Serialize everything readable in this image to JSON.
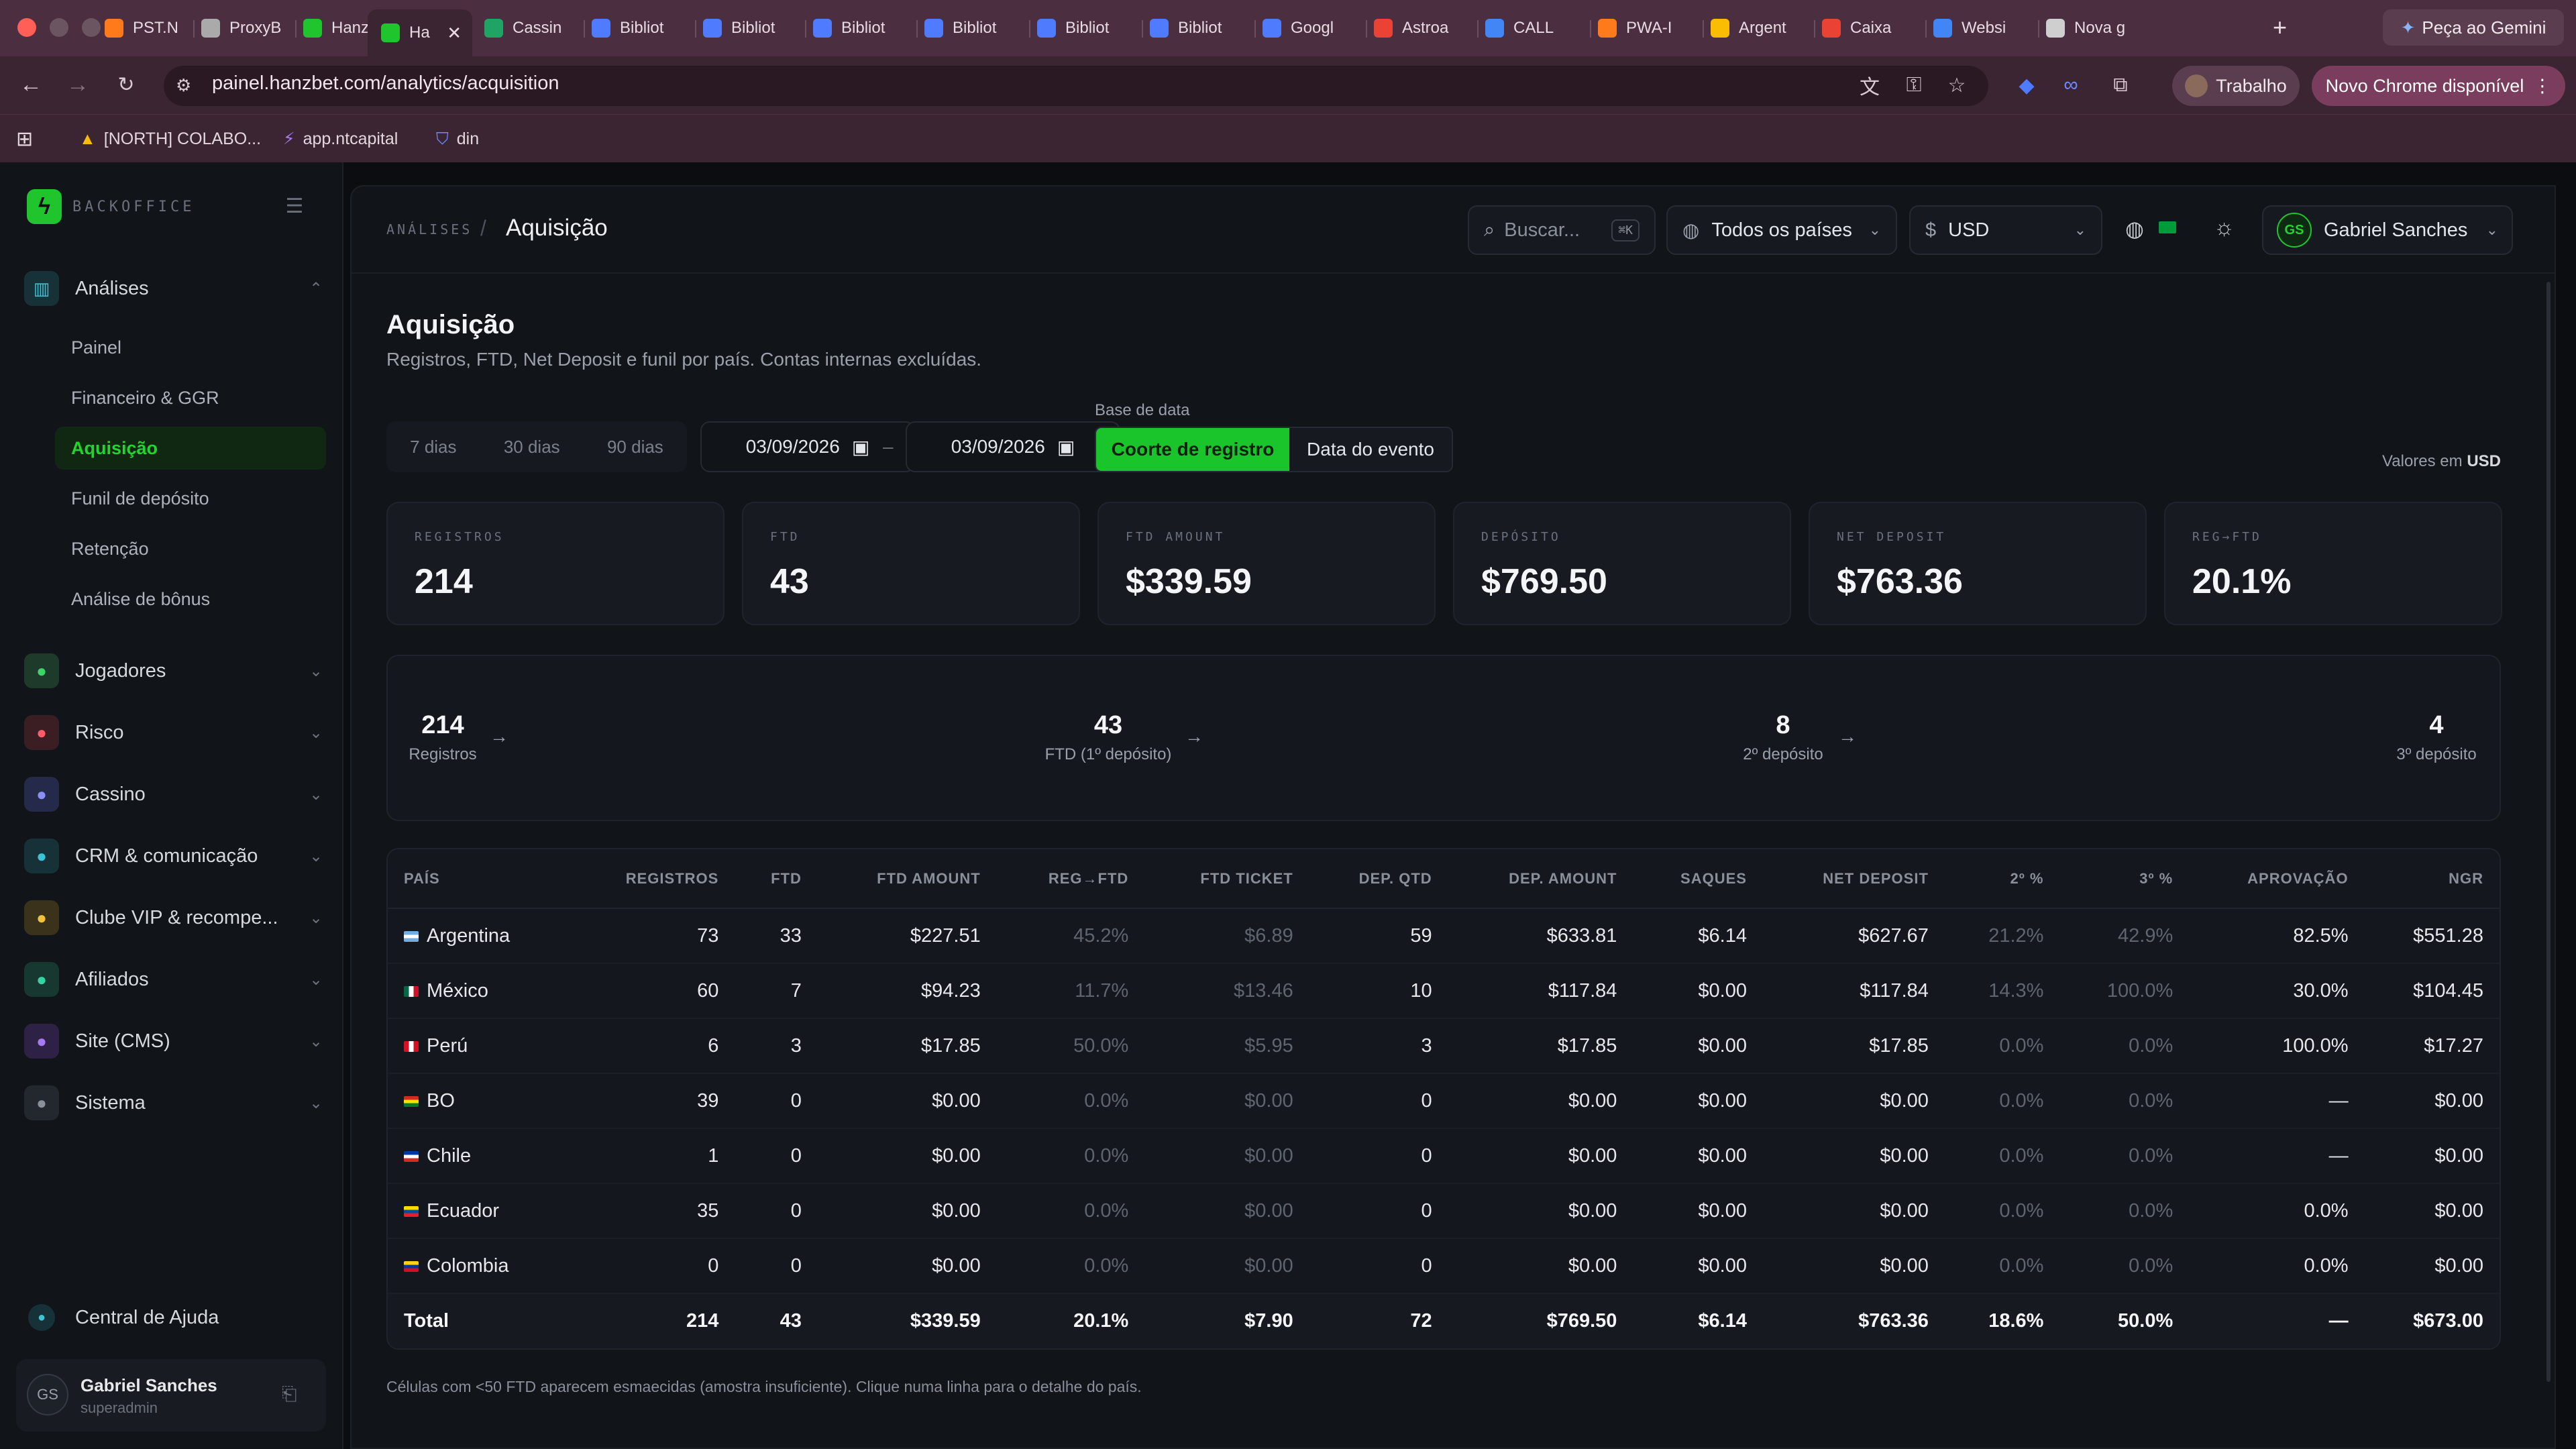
{
  "browser": {
    "tabs": [
      {
        "label": "PST.N",
        "color": "#ff7a1a"
      },
      {
        "label": "ProxyB",
        "color": "#aaaaaa"
      },
      {
        "label": "HanzB",
        "color": "#20c52e"
      },
      {
        "label": "Ha",
        "color": "#20c52e",
        "active": true
      },
      {
        "label": "Cassin",
        "color": "#1fa463"
      },
      {
        "label": "Bibliot",
        "color": "#4e7bff"
      },
      {
        "label": "Bibliot",
        "color": "#4e7bff"
      },
      {
        "label": "Bibliot",
        "color": "#4e7bff"
      },
      {
        "label": "Bibliot",
        "color": "#4e7bff"
      },
      {
        "label": "Bibliot",
        "color": "#4e7bff"
      },
      {
        "label": "Bibliot",
        "color": "#4e7bff"
      },
      {
        "label": "Googl",
        "color": "#4e7bff"
      },
      {
        "label": "Astroa",
        "color": "#ea4335"
      },
      {
        "label": "CALL",
        "color": "#4285f4"
      },
      {
        "label": "PWA-I",
        "color": "#ff7a1a"
      },
      {
        "label": "Argent",
        "color": "#fbbc04"
      },
      {
        "label": "Caixa",
        "color": "#ea4335"
      },
      {
        "label": "Websi",
        "color": "#4285f4"
      },
      {
        "label": "Nova g",
        "color": "#cfcfcf"
      }
    ],
    "new_tab": "+",
    "gemini": "Peça ao Gemini",
    "url": "painel.hanzbet.com/analytics/acquisition",
    "profile": "Trabalho",
    "new_chrome": "Novo Chrome disponível",
    "bookmarks": [
      "[NORTH] COLABO...",
      "app.ntcapital",
      "din"
    ]
  },
  "sidebar": {
    "brand": "BACKOFFICE",
    "analises": {
      "label": "Análises",
      "items": [
        "Painel",
        "Financeiro & GGR",
        "Aquisição",
        "Funil de depósito",
        "Retenção",
        "Análise de bônus"
      ],
      "active": "Aquisição"
    },
    "sections": [
      {
        "label": "Jogadores",
        "icon": "users-icon",
        "color": "#1e3a2a",
        "fg": "#3fd46a"
      },
      {
        "label": "Risco",
        "icon": "shield-icon",
        "color": "#3a1e24",
        "fg": "#ff5b6b"
      },
      {
        "label": "Cassino",
        "icon": "gamepad-icon",
        "color": "#262a4a",
        "fg": "#8b8ff5"
      },
      {
        "label": "CRM & comunicação",
        "icon": "chat-icon",
        "color": "#163238",
        "fg": "#3bc4d6"
      },
      {
        "label": "Clube VIP & recompe...",
        "icon": "trophy-icon",
        "color": "#3a321a",
        "fg": "#f2c23a"
      },
      {
        "label": "Afiliados",
        "icon": "affiliates-icon",
        "color": "#163830",
        "fg": "#34d3a3"
      },
      {
        "label": "Site (CMS)",
        "icon": "cms-icon",
        "color": "#2e2146",
        "fg": "#a47bf0"
      },
      {
        "label": "Sistema",
        "icon": "gear-icon",
        "color": "#23272e",
        "fg": "#8a909a"
      }
    ],
    "help": "Central de Ajuda",
    "user": {
      "initials": "GS",
      "name": "Gabriel Sanches",
      "role": "superadmin"
    }
  },
  "header": {
    "crumb_parent": "ANÁLISES",
    "crumb_sep": "/",
    "crumb_current": "Aquisição",
    "search_placeholder": "Buscar...",
    "search_kbd": "⌘K",
    "country": "Todos os países",
    "currency_symbol": "$",
    "currency": "USD",
    "user_initials": "GS",
    "user_name": "Gabriel Sanches"
  },
  "page": {
    "title": "Aquisição",
    "subtitle": "Registros, FTD, Net Deposit e funil por país. Contas internas excluídas.",
    "ranges": [
      "7 dias",
      "30 dias",
      "90 dias"
    ],
    "date_from": "03/09/2026",
    "date_to": "03/09/2026",
    "date_sep": "–",
    "base_label": "Base de data",
    "base_on": "Coorte de registro",
    "base_off": "Data do evento",
    "values_in_prefix": "Valores em",
    "values_in_cur": "USD"
  },
  "kpis": [
    {
      "k": "REGISTROS",
      "v": "214"
    },
    {
      "k": "FTD",
      "v": "43"
    },
    {
      "k": "FTD AMOUNT",
      "v": "$339.59"
    },
    {
      "k": "DEPÓSITO",
      "v": "$769.50"
    },
    {
      "k": "NET DEPOSIT",
      "v": "$763.36"
    },
    {
      "k": "REG→FTD",
      "v": "20.1%"
    }
  ],
  "funnel": [
    {
      "n": "214",
      "l": "Registros"
    },
    {
      "n": "43",
      "l": "FTD (1º depósito)"
    },
    {
      "n": "8",
      "l": "2º depósito"
    },
    {
      "n": "4",
      "l": "3º depósito"
    }
  ],
  "table": {
    "headers": [
      "PAÍS",
      "REGISTROS",
      "FTD",
      "FTD AMOUNT",
      "REG→FTD",
      "FTD TICKET",
      "DEP. QTD",
      "DEP. AMOUNT",
      "SAQUES",
      "NET DEPOSIT",
      "2º %",
      "3º %",
      "APROVAÇÃO",
      "NGR"
    ],
    "rows": [
      {
        "flag": [
          "#74acdf",
          "#ffffff",
          "#74acdf"
        ],
        "cells": [
          "Argentina",
          "73",
          "33",
          "$227.51",
          "45.2%",
          "$6.89",
          "59",
          "$633.81",
          "$6.14",
          "$627.67",
          "21.2%",
          "42.9%",
          "82.5%",
          "$551.28"
        ]
      },
      {
        "flag": [
          "#006847",
          "#ffffff",
          "#ce1126"
        ],
        "vertical": true,
        "cells": [
          "México",
          "60",
          "7",
          "$94.23",
          "11.7%",
          "$13.46",
          "10",
          "$117.84",
          "$0.00",
          "$117.84",
          "14.3%",
          "100.0%",
          "30.0%",
          "$104.45"
        ]
      },
      {
        "flag": [
          "#d91023",
          "#ffffff",
          "#d91023"
        ],
        "vertical": true,
        "cells": [
          "Perú",
          "6",
          "3",
          "$17.85",
          "50.0%",
          "$5.95",
          "3",
          "$17.85",
          "$0.00",
          "$17.85",
          "0.0%",
          "0.0%",
          "100.0%",
          "$17.27"
        ]
      },
      {
        "flag": [
          "#d52b1e",
          "#f9e300",
          "#007934"
        ],
        "cells": [
          "BO",
          "39",
          "0",
          "$0.00",
          "0.0%",
          "$0.00",
          "0",
          "$0.00",
          "$0.00",
          "$0.00",
          "0.0%",
          "0.0%",
          "—",
          "$0.00"
        ]
      },
      {
        "flag": [
          "#0039a6",
          "#ffffff",
          "#d52b1e"
        ],
        "cells": [
          "Chile",
          "1",
          "0",
          "$0.00",
          "0.0%",
          "$0.00",
          "0",
          "$0.00",
          "$0.00",
          "$0.00",
          "0.0%",
          "0.0%",
          "—",
          "$0.00"
        ]
      },
      {
        "flag": [
          "#ffdd00",
          "#034ea2",
          "#ed1c24"
        ],
        "cells": [
          "Ecuador",
          "35",
          "0",
          "$0.00",
          "0.0%",
          "$0.00",
          "0",
          "$0.00",
          "$0.00",
          "$0.00",
          "0.0%",
          "0.0%",
          "0.0%",
          "$0.00"
        ]
      },
      {
        "flag": [
          "#fcd116",
          "#003893",
          "#ce1126"
        ],
        "cells": [
          "Colombia",
          "0",
          "0",
          "$0.00",
          "0.0%",
          "$0.00",
          "0",
          "$0.00",
          "$0.00",
          "$0.00",
          "0.0%",
          "0.0%",
          "0.0%",
          "$0.00"
        ]
      }
    ],
    "total": [
      "Total",
      "214",
      "43",
      "$339.59",
      "20.1%",
      "$7.90",
      "72",
      "$769.50",
      "$6.14",
      "$763.36",
      "18.6%",
      "50.0%",
      "—",
      "$673.00"
    ],
    "dim_columns": [
      4,
      5,
      10,
      11
    ]
  },
  "footnote": "Células com <50 FTD aparecem esmaecidas (amostra insuficiente). Clique numa linha para o detalhe do país."
}
